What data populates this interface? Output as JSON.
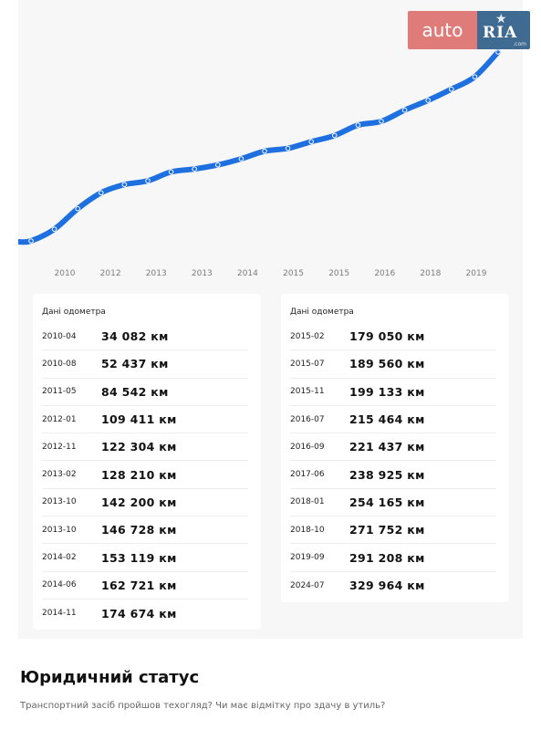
{
  "brand": {
    "auto": "auto",
    "ria": "RIA",
    "ria_suffix": ".com"
  },
  "chart_data": {
    "type": "line",
    "x_tick_labels": [
      "2010",
      "2012",
      "2013",
      "2013",
      "2014",
      "2015",
      "2015",
      "2016",
      "2018",
      "2019"
    ],
    "series": [
      {
        "color": "#1e6fe0",
        "points": [
          {
            "x": "2010-04",
            "y": 34082
          },
          {
            "x": "2010-08",
            "y": 52437
          },
          {
            "x": "2011-05",
            "y": 84542
          },
          {
            "x": "2012-01",
            "y": 109411
          },
          {
            "x": "2012-11",
            "y": 122304
          },
          {
            "x": "2013-02",
            "y": 128210
          },
          {
            "x": "2013-10",
            "y": 142200
          },
          {
            "x": "2013-10",
            "y": 146728
          },
          {
            "x": "2014-02",
            "y": 153119
          },
          {
            "x": "2014-06",
            "y": 162721
          },
          {
            "x": "2014-11",
            "y": 174674
          },
          {
            "x": "2015-02",
            "y": 179050
          },
          {
            "x": "2015-07",
            "y": 189560
          },
          {
            "x": "2015-11",
            "y": 199133
          },
          {
            "x": "2016-07",
            "y": 215464
          },
          {
            "x": "2016-09",
            "y": 221437
          },
          {
            "x": "2017-06",
            "y": 238925
          },
          {
            "x": "2018-01",
            "y": 254165
          },
          {
            "x": "2018-10",
            "y": 271752
          },
          {
            "x": "2019-09",
            "y": 291208
          },
          {
            "x": "2024-07",
            "y": 329964
          }
        ]
      }
    ],
    "grid": false,
    "legend": "none"
  },
  "odometer": {
    "title": "Дані одометра",
    "left": [
      {
        "date": "2010-04",
        "km": "34 082 км"
      },
      {
        "date": "2010-08",
        "km": "52 437 км"
      },
      {
        "date": "2011-05",
        "km": "84 542 км"
      },
      {
        "date": "2012-01",
        "km": "109 411 км"
      },
      {
        "date": "2012-11",
        "km": "122 304 км"
      },
      {
        "date": "2013-02",
        "km": "128 210 км"
      },
      {
        "date": "2013-10",
        "km": "142 200 км"
      },
      {
        "date": "2013-10",
        "km": "146 728 км"
      },
      {
        "date": "2014-02",
        "km": "153 119 км"
      },
      {
        "date": "2014-06",
        "km": "162 721 км"
      },
      {
        "date": "2014-11",
        "km": "174 674 км"
      }
    ],
    "right": [
      {
        "date": "2015-02",
        "km": "179 050 км"
      },
      {
        "date": "2015-07",
        "km": "189 560 км"
      },
      {
        "date": "2015-11",
        "km": "199 133 км"
      },
      {
        "date": "2016-07",
        "km": "215 464 км"
      },
      {
        "date": "2016-09",
        "km": "221 437 км"
      },
      {
        "date": "2017-06",
        "km": "238 925 км"
      },
      {
        "date": "2018-01",
        "km": "254 165 км"
      },
      {
        "date": "2018-10",
        "km": "271 752 км"
      },
      {
        "date": "2019-09",
        "km": "291 208 км"
      },
      {
        "date": "2024-07",
        "km": "329 964 км"
      }
    ]
  },
  "legal": {
    "title": "Юридичний статус",
    "text": "Транспортний засіб пройшов техогляд? Чи має відмітку про здачу в утиль?"
  }
}
